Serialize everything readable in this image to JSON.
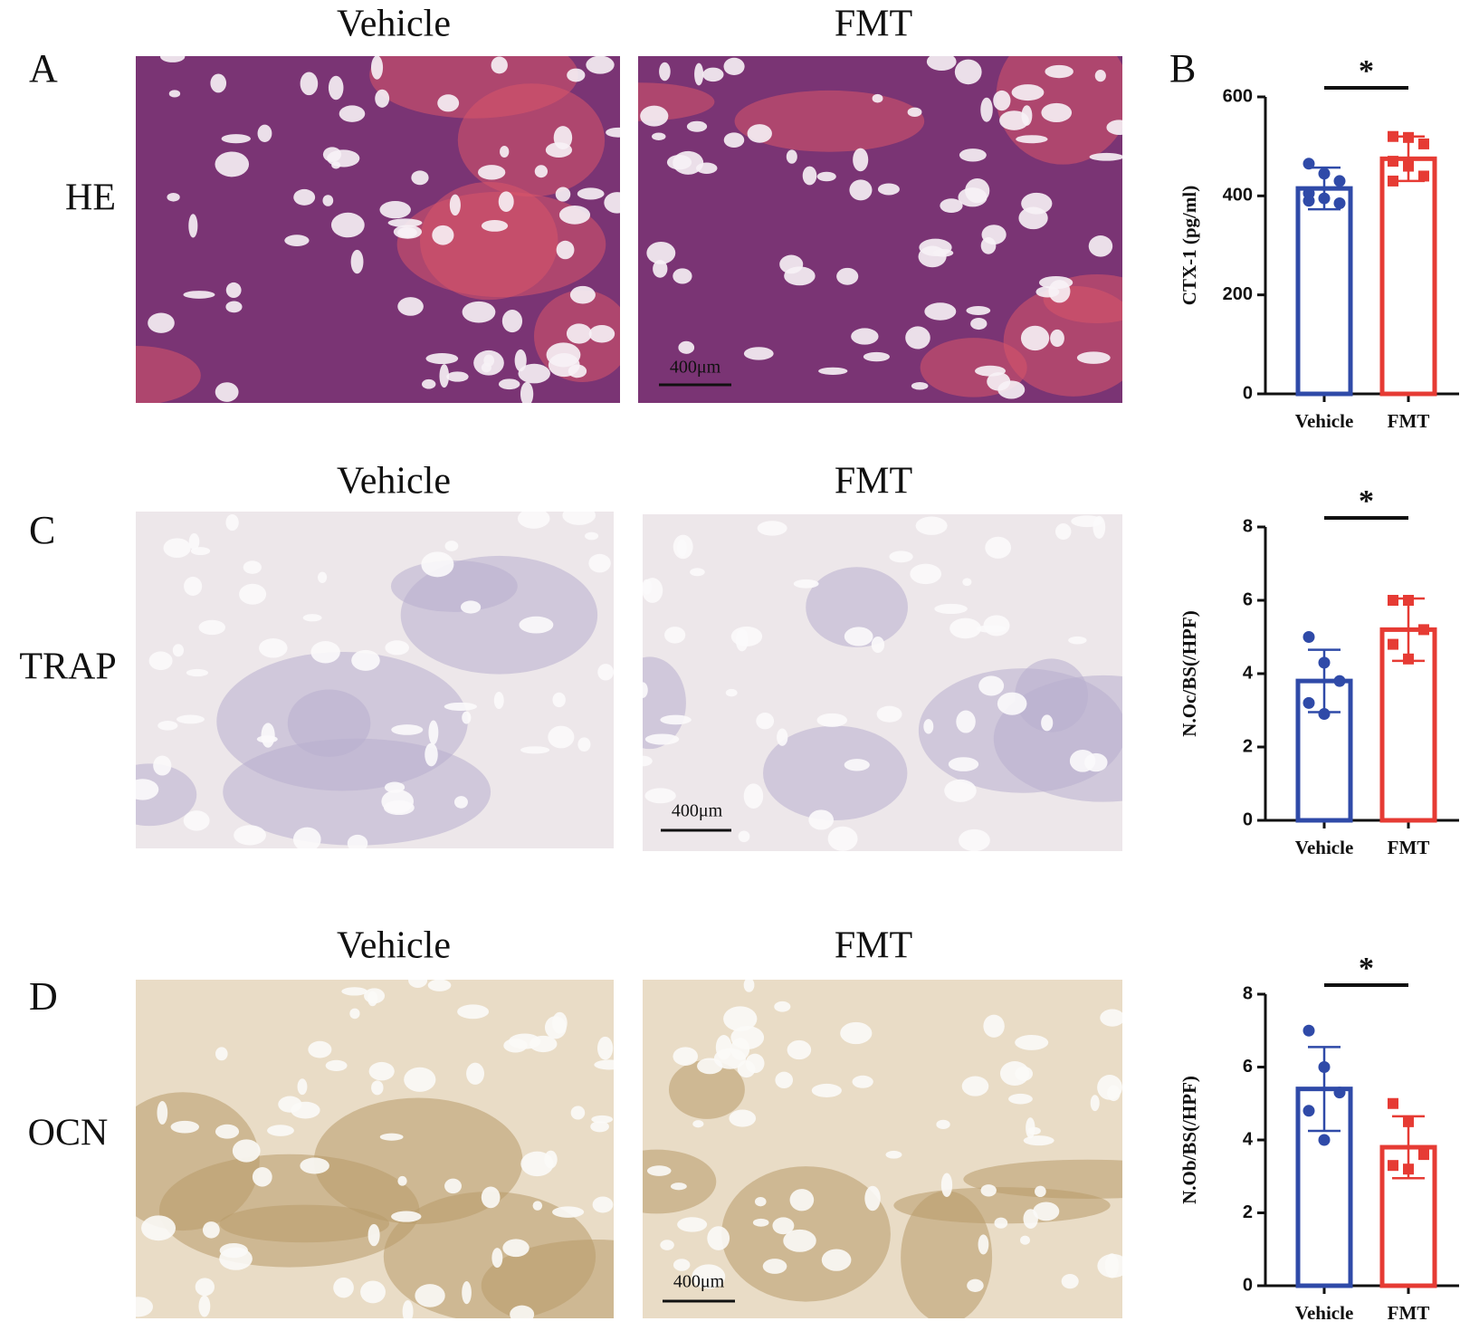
{
  "panel_labels": [
    "A",
    "B",
    "C",
    "D"
  ],
  "column_titles": [
    [
      "Vehicle",
      "FMT"
    ],
    [
      "Vehicle",
      "FMT"
    ],
    [
      "Vehicle",
      "FMT"
    ]
  ],
  "row_labels": [
    "HE",
    "TRAP",
    "OCN"
  ],
  "scale_bars": [
    "400μm",
    "400μm",
    "400μm"
  ],
  "chart_data": [
    {
      "type": "bar",
      "ylabel": "CTX-1 (pg/ml)",
      "categories": [
        "Vehicle",
        "FMT"
      ],
      "values": [
        415,
        475
      ],
      "errors": [
        42,
        45
      ],
      "points": [
        [
          465,
          445,
          430,
          405,
          395,
          385,
          390
        ],
        [
          520,
          518,
          505,
          470,
          460,
          440,
          430
        ]
      ],
      "colors": [
        "#2f4aa8",
        "#e63b34"
      ],
      "significance": "*",
      "ylim": [
        0,
        600
      ],
      "yticks": [
        0,
        200,
        400,
        600
      ]
    },
    {
      "type": "bar",
      "ylabel": "N.Oc/BS(/HPF)",
      "categories": [
        "Vehicle",
        "FMT"
      ],
      "values": [
        3.8,
        5.2
      ],
      "errors": [
        0.85,
        0.85
      ],
      "points": [
        [
          5.0,
          4.3,
          3.8,
          3.2,
          2.9
        ],
        [
          6.0,
          6.0,
          5.2,
          4.8,
          4.4
        ]
      ],
      "colors": [
        "#2f4aa8",
        "#e63b34"
      ],
      "significance": "*",
      "ylim": [
        0,
        8
      ],
      "yticks": [
        0,
        2,
        4,
        6,
        8
      ]
    },
    {
      "type": "bar",
      "ylabel": "N.Ob/BS(/HPF)",
      "categories": [
        "Vehicle",
        "FMT"
      ],
      "values": [
        5.4,
        3.8
      ],
      "errors": [
        1.15,
        0.85
      ],
      "points": [
        [
          7.0,
          6.0,
          5.3,
          4.8,
          4.0
        ],
        [
          5.0,
          4.5,
          3.6,
          3.3,
          3.2
        ]
      ],
      "colors": [
        "#2f4aa8",
        "#e63b34"
      ],
      "significance": "*",
      "ylim": [
        0,
        8
      ],
      "yticks": [
        0,
        2,
        4,
        6,
        8
      ]
    }
  ]
}
